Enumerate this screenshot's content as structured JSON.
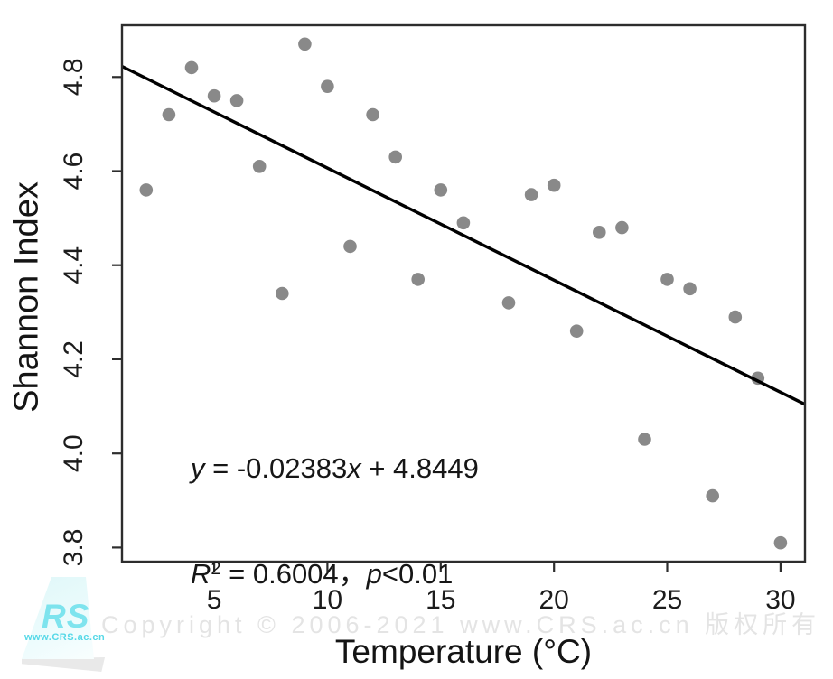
{
  "watermark": {
    "text": "Copyright © 2006-2021 www.CRS.ac.cn 版权所有",
    "color": "#e4e4e4"
  },
  "logo": {
    "brand": "RS",
    "url_text": "www.CRS.ac.cn",
    "color": "#3cd6e6"
  },
  "equation": {
    "l1_y": "y",
    "l1_mid": " = -0.02383",
    "l1_x": "x",
    "l1_tail": " + 4.8449",
    "l2_r": "R",
    "l2_sup": "2",
    "l2_mid": " = 0.6004，",
    "l2_p": "p",
    "l2_tail": "<0.01"
  },
  "chart_data": {
    "type": "scatter",
    "title": "",
    "xlabel": "Temperature (°C)",
    "ylabel": "Shannon Index",
    "xlim": [
      0.93,
      31.08
    ],
    "ylim": [
      3.77,
      4.91
    ],
    "x_tick_values": [
      5,
      10,
      15,
      20,
      25,
      30
    ],
    "x_tick_labels": [
      "5",
      "10",
      "15",
      "20",
      "25",
      "30"
    ],
    "y_tick_values": [
      3.8,
      4.0,
      4.2,
      4.4,
      4.6,
      4.8
    ],
    "y_tick_labels": [
      "3.8",
      "4.0",
      "4.2",
      "4.4",
      "4.6",
      "4.8"
    ],
    "grid": false,
    "legend": null,
    "point_color": "#898989",
    "line_color": "#000000",
    "frame_color": "#2d2d2d",
    "points": [
      [
        2,
        4.56
      ],
      [
        3,
        4.72
      ],
      [
        4,
        4.82
      ],
      [
        5,
        4.76
      ],
      [
        6,
        4.75
      ],
      [
        7,
        4.61
      ],
      [
        8,
        4.34
      ],
      [
        9,
        4.87
      ],
      [
        10,
        4.78
      ],
      [
        11,
        4.44
      ],
      [
        12,
        4.72
      ],
      [
        13,
        4.63
      ],
      [
        14,
        4.37
      ],
      [
        15,
        4.56
      ],
      [
        16,
        4.49
      ],
      [
        18,
        4.32
      ],
      [
        19,
        4.55
      ],
      [
        20,
        4.57
      ],
      [
        21,
        4.26
      ],
      [
        22,
        4.47
      ],
      [
        23,
        4.48
      ],
      [
        24,
        4.03
      ],
      [
        25,
        4.37
      ],
      [
        26,
        4.35
      ],
      [
        27,
        3.91
      ],
      [
        28,
        4.29
      ],
      [
        29,
        4.16
      ],
      [
        30,
        3.81
      ]
    ],
    "regression": {
      "slope": -0.02383,
      "intercept": 4.8449,
      "r2": 0.6004,
      "p": "<0.01"
    }
  }
}
